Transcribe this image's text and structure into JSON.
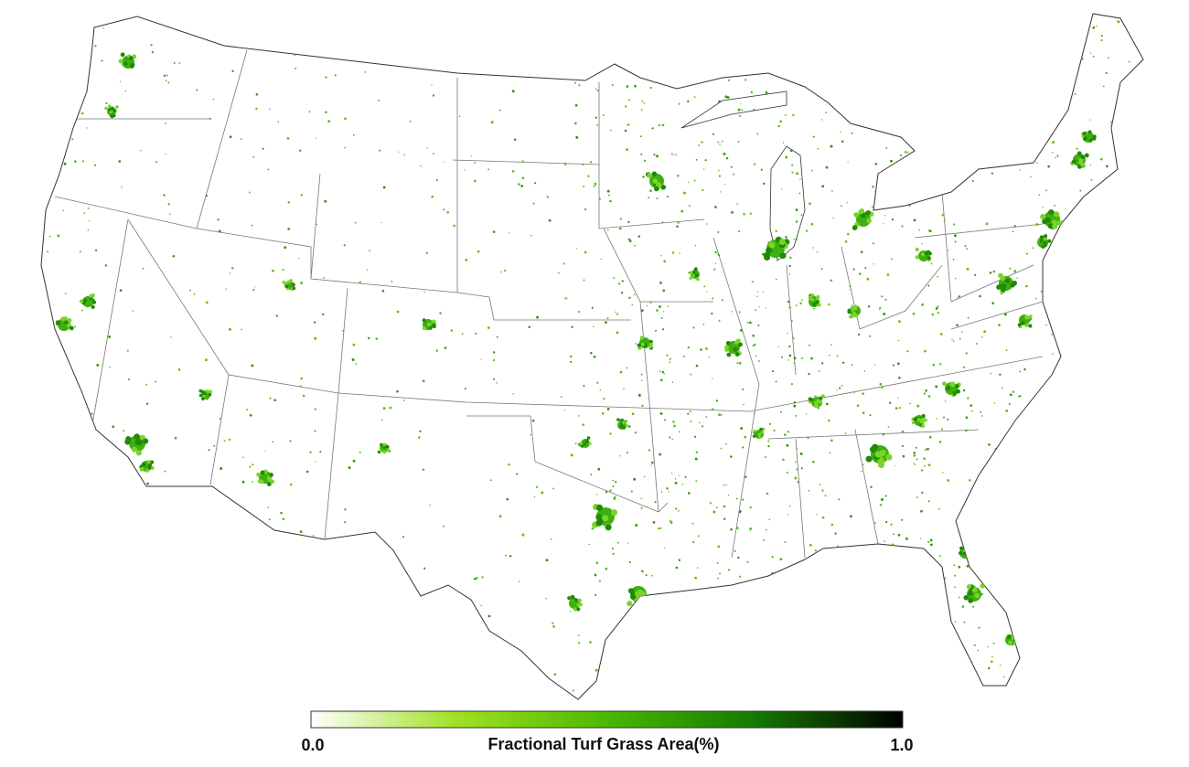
{
  "legend": {
    "title": "Fractional Turf Grass Area(%)",
    "min_label": "0.0",
    "max_label": "1.0",
    "colors": [
      "#ffffff",
      "#9fe020",
      "#4cb800",
      "#157a00",
      "#000000"
    ]
  }
}
